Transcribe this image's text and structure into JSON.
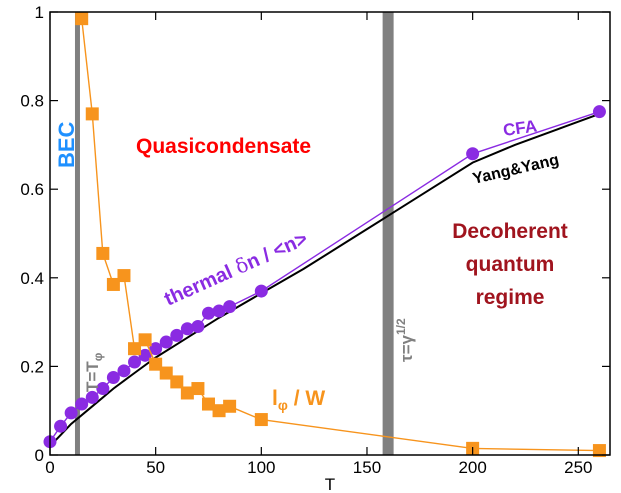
{
  "chart_data": {
    "type": "line",
    "xlabel": "T",
    "ylabel": "",
    "xlim": [
      0,
      265
    ],
    "ylim": [
      0,
      1
    ],
    "x_ticks": [
      0,
      50,
      100,
      150,
      200,
      250
    ],
    "y_ticks": [
      0,
      0.2,
      0.4,
      0.6,
      0.8,
      1
    ],
    "x_tick_labels": [
      "0",
      "50",
      "100",
      "150",
      "200",
      "250"
    ],
    "y_tick_labels": [
      "0",
      "0.2",
      "0.4",
      "0.6",
      "0.8",
      "1"
    ],
    "grid": false,
    "legend": "none",
    "vertical_bands": [
      {
        "x": 13,
        "color": "#808080",
        "label": "T=T",
        "label_sub": "φ"
      },
      {
        "x": 160,
        "color": "#808080",
        "label": "τ=γ",
        "label_sup": "1/2"
      }
    ],
    "series": [
      {
        "name": "",
        "style": "line",
        "color": "#000000",
        "x": [
          0,
          5,
          10,
          20,
          30,
          40,
          50,
          60,
          80,
          100,
          120,
          140,
          160,
          180,
          200,
          220,
          240,
          260
        ],
        "y": [
          0.02,
          0.045,
          0.07,
          0.11,
          0.15,
          0.185,
          0.22,
          0.25,
          0.31,
          0.365,
          0.42,
          0.48,
          0.54,
          0.6,
          0.66,
          0.7,
          0.735,
          0.77
        ]
      },
      {
        "name": "",
        "style": "line-markers",
        "marker": "circle",
        "color": "#8a2be2",
        "x": [
          0,
          5,
          10,
          15,
          20,
          25,
          30,
          35,
          40,
          45,
          50,
          55,
          60,
          65,
          70,
          75,
          80,
          85,
          100,
          200,
          260
        ],
        "y": [
          0.03,
          0.065,
          0.095,
          0.115,
          0.13,
          0.15,
          0.175,
          0.19,
          0.21,
          0.225,
          0.24,
          0.255,
          0.27,
          0.285,
          0.29,
          0.32,
          0.325,
          0.335,
          0.37,
          0.68,
          0.775
        ]
      },
      {
        "name": "",
        "style": "line-markers",
        "marker": "square",
        "color": "#f7941d",
        "x": [
          15,
          20,
          25,
          30,
          35,
          40,
          45,
          50,
          55,
          60,
          65,
          70,
          75,
          80,
          85,
          100,
          200,
          260
        ],
        "y": [
          0.985,
          0.77,
          0.455,
          0.385,
          0.405,
          0.24,
          0.26,
          0.205,
          0.185,
          0.165,
          0.14,
          0.15,
          0.115,
          0.1,
          0.11,
          0.08,
          0.015,
          0.01
        ]
      }
    ],
    "annotations": {
      "bec": {
        "text": "BEC",
        "color": "#1e90ff"
      },
      "quasi": {
        "text": "Quasicondensate",
        "color": "#ff0000"
      },
      "decoh1": {
        "text": "Decoherent",
        "color": "#a0141e"
      },
      "decoh2": {
        "text": "quantum",
        "color": "#a0141e"
      },
      "decoh3": {
        "text": "regime",
        "color": "#a0141e"
      },
      "cfa": {
        "text": "CFA",
        "color": "#8a2be2"
      },
      "yang": {
        "text": "Yang&Yang",
        "color": "#000000"
      },
      "thermal_a": {
        "text": "thermal ",
        "color": "#8a2be2"
      },
      "thermal_b": {
        "text": "δ",
        "color": "#8a2be2"
      },
      "thermal_c": {
        "text": "n / <n>",
        "color": "#8a2be2"
      },
      "lphi_main": {
        "text": "l",
        "color": "#f7941d"
      },
      "lphi_sub": {
        "text": "φ",
        "color": "#f7941d"
      },
      "lphi_rest": {
        "text": " / W",
        "color": "#f7941d"
      }
    }
  }
}
